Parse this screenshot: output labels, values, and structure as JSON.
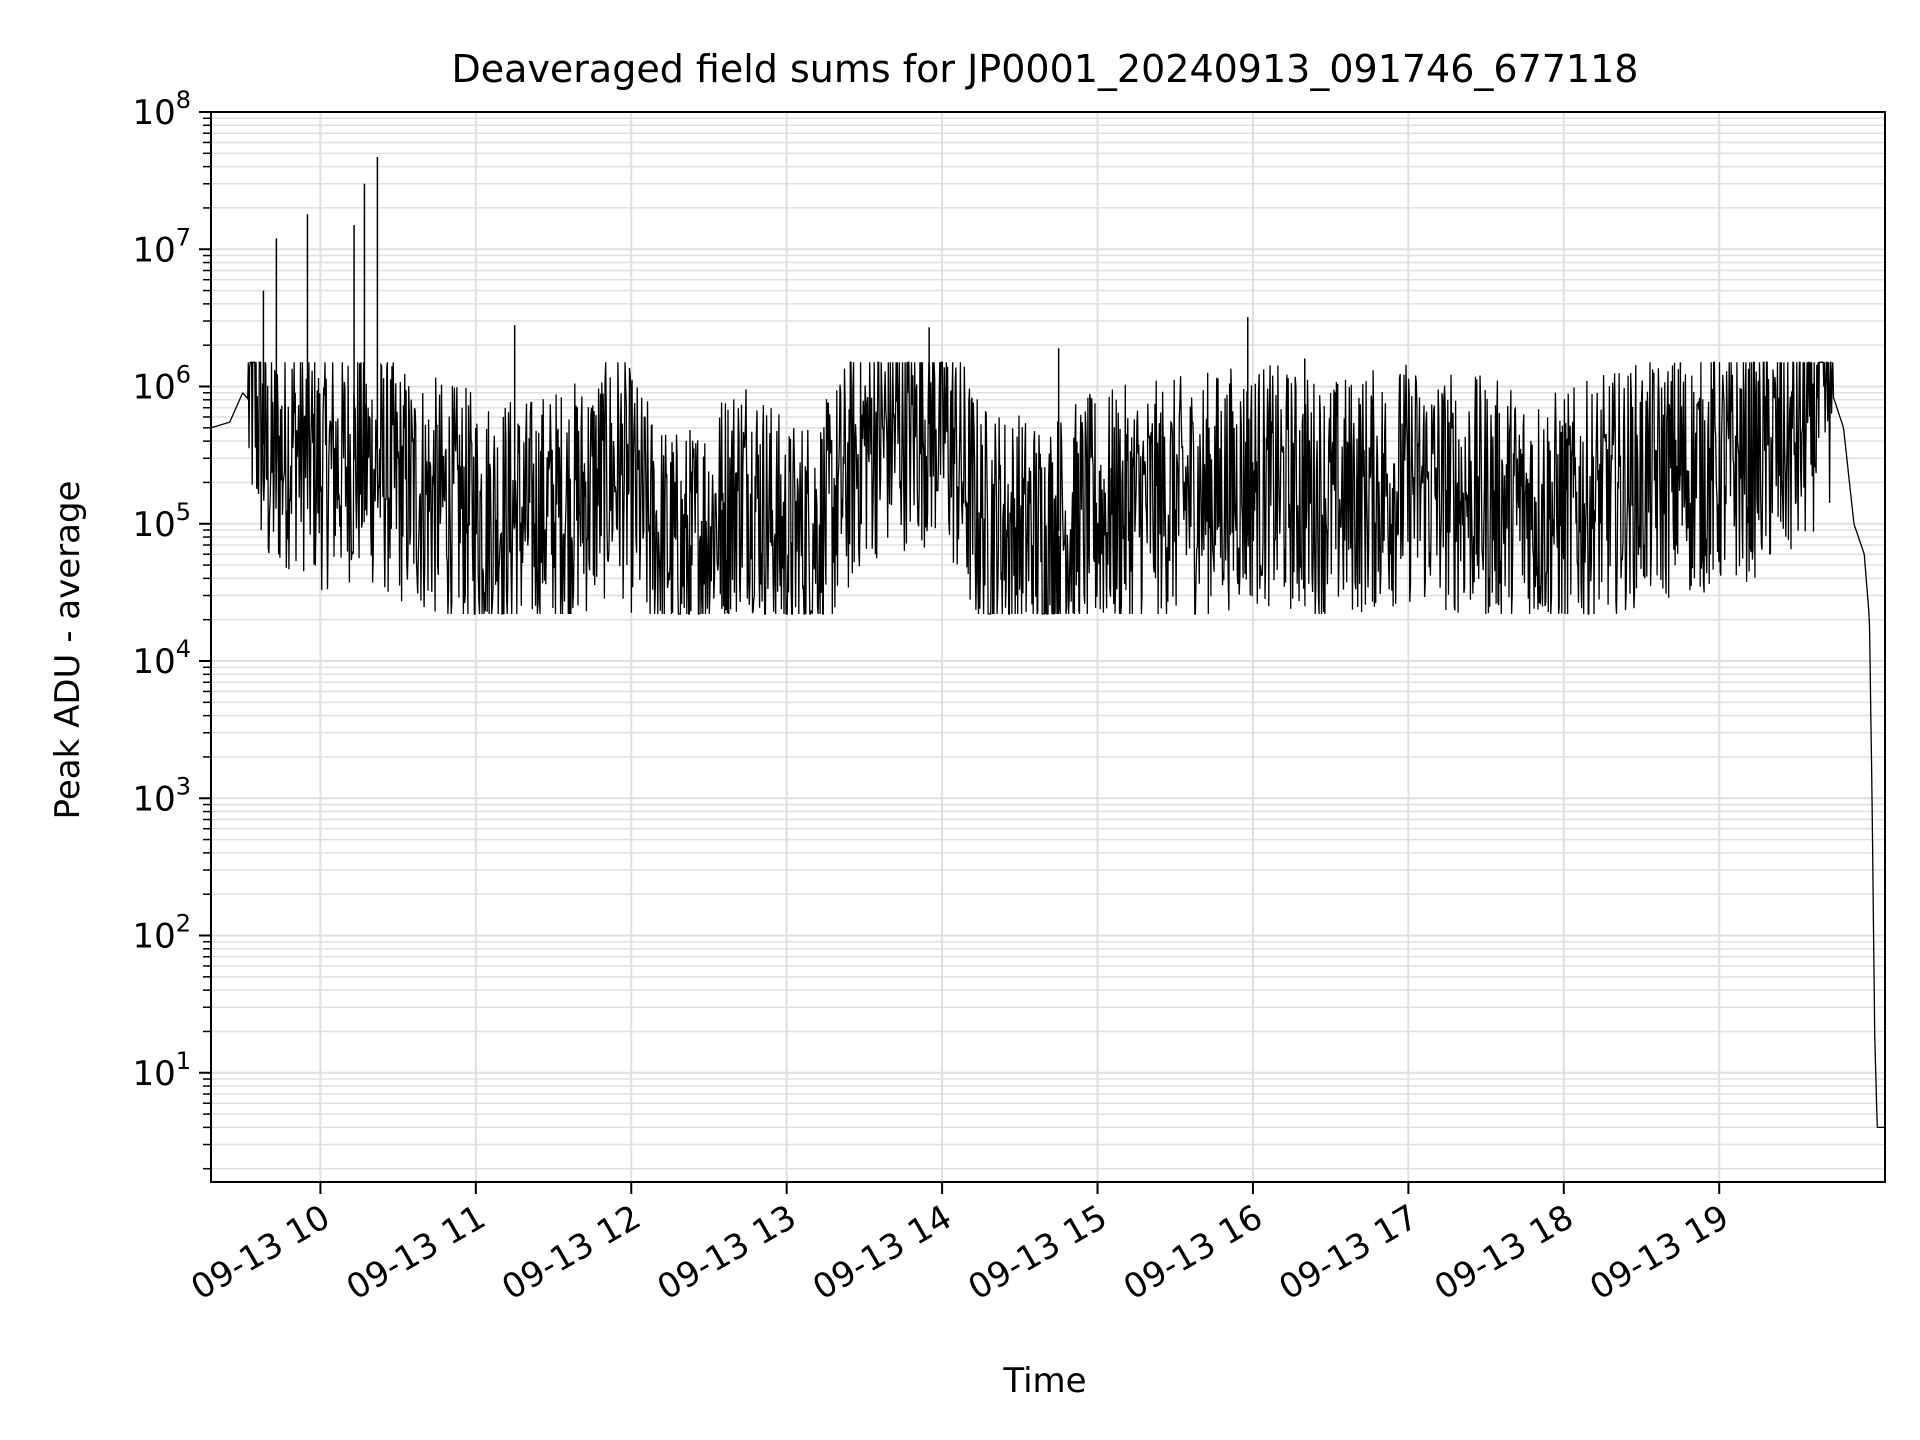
{
  "chart_data": {
    "type": "line",
    "title": "Deaveraged field sums for JP0001_20240913_091746_677118",
    "xlabel": "Time",
    "ylabel": "Peak ADU - average",
    "yscale": "log",
    "ylim": [
      1.6,
      100000000
    ],
    "xlim": [
      "2024-09-13 09:17:46",
      "2024-09-13 20:04:00"
    ],
    "grid": true,
    "x_ticks": [
      {
        "time": "2024-09-13 10:00",
        "label": "09-13 10"
      },
      {
        "time": "2024-09-13 11:00",
        "label": "09-13 11"
      },
      {
        "time": "2024-09-13 12:00",
        "label": "09-13 12"
      },
      {
        "time": "2024-09-13 13:00",
        "label": "09-13 13"
      },
      {
        "time": "2024-09-13 14:00",
        "label": "09-13 14"
      },
      {
        "time": "2024-09-13 15:00",
        "label": "09-13 15"
      },
      {
        "time": "2024-09-13 16:00",
        "label": "09-13 16"
      },
      {
        "time": "2024-09-13 17:00",
        "label": "09-13 17"
      },
      {
        "time": "2024-09-13 18:00",
        "label": "09-13 18"
      },
      {
        "time": "2024-09-13 19:00",
        "label": "09-13 19"
      }
    ],
    "y_ticks": [
      {
        "value": 10,
        "base": "10",
        "exp": "1"
      },
      {
        "value": 100,
        "base": "10",
        "exp": "2"
      },
      {
        "value": 1000,
        "base": "10",
        "exp": "3"
      },
      {
        "value": 10000,
        "base": "10",
        "exp": "4"
      },
      {
        "value": 100000,
        "base": "10",
        "exp": "5"
      },
      {
        "value": 1000000,
        "base": "10",
        "exp": "6"
      },
      {
        "value": 10000000,
        "base": "10",
        "exp": "7"
      },
      {
        "value": 100000000,
        "base": "10",
        "exp": "8"
      }
    ],
    "line_color": "#000000",
    "grid_color": "#e0e0e0",
    "series": [
      {
        "points": [
          [
            "2024-09-13 09:17:46",
            500000
          ],
          [
            "2024-09-13 09:25",
            550000
          ],
          [
            "2024-09-13 09:30",
            900000
          ],
          [
            "2024-09-13 09:35",
            700000
          ],
          [
            "2024-09-13 09:40",
            250000
          ],
          [
            "2024-09-13 09:50",
            400000
          ],
          [
            "2024-09-13 10:00",
            250000
          ],
          [
            "2024-09-13 10:15",
            300000
          ],
          [
            "2024-09-13 10:30",
            200000
          ],
          [
            "2024-09-13 10:45",
            150000
          ],
          [
            "2024-09-13 11:00",
            120000
          ],
          [
            "2024-09-13 11:20",
            110000
          ],
          [
            "2024-09-13 11:40",
            150000
          ],
          [
            "2024-09-13 11:55",
            250000
          ],
          [
            "2024-09-13 12:10",
            80000
          ],
          [
            "2024-09-13 12:20",
            60000
          ],
          [
            "2024-09-13 12:30",
            100000
          ],
          [
            "2024-09-13 12:45",
            200000
          ],
          [
            "2024-09-13 13:00",
            70000
          ],
          [
            "2024-09-13 13:15",
            100000
          ],
          [
            "2024-09-13 13:30",
            400000
          ],
          [
            "2024-09-13 13:45",
            500000
          ],
          [
            "2024-09-13 14:00",
            550000
          ],
          [
            "2024-09-13 14:15",
            100000
          ],
          [
            "2024-09-13 14:40",
            80000
          ],
          [
            "2024-09-13 15:00",
            120000
          ],
          [
            "2024-09-13 15:30",
            150000
          ],
          [
            "2024-09-13 16:00",
            200000
          ],
          [
            "2024-09-13 16:30",
            150000
          ],
          [
            "2024-09-13 17:00",
            200000
          ],
          [
            "2024-09-13 17:30",
            150000
          ],
          [
            "2024-09-13 18:00",
            120000
          ],
          [
            "2024-09-13 18:30",
            200000
          ],
          [
            "2024-09-13 19:00",
            250000
          ],
          [
            "2024-09-13 19:30",
            400000
          ],
          [
            "2024-09-13 19:42",
            1100000
          ],
          [
            "2024-09-13 19:48",
            500000
          ],
          [
            "2024-09-13 19:52",
            100000
          ],
          [
            "2024-09-13 19:56",
            60000
          ],
          [
            "2024-09-13 19:58",
            20000
          ],
          [
            "2024-09-13 19:59",
            1000
          ],
          [
            "2024-09-13 20:00",
            20
          ],
          [
            "2024-09-13 20:01",
            4
          ],
          [
            "2024-09-13 20:04",
            4
          ]
        ],
        "spikes": [
          [
            "2024-09-13 09:38",
            5000000
          ],
          [
            "2024-09-13 09:43",
            12000000
          ],
          [
            "2024-09-13 09:55",
            18000000
          ],
          [
            "2024-09-13 10:13",
            15000000
          ],
          [
            "2024-09-13 10:17",
            30000000
          ],
          [
            "2024-09-13 10:22",
            47000000
          ],
          [
            "2024-09-13 11:15",
            2800000
          ],
          [
            "2024-09-13 13:55",
            2700000
          ],
          [
            "2024-09-13 14:45",
            1900000
          ],
          [
            "2024-09-13 15:58",
            3200000
          ],
          [
            "2024-09-13 16:20",
            1600000
          ],
          [
            "2024-09-13 18:45",
            1500000
          ],
          [
            "2024-09-13 12:23",
            23000
          ],
          [
            "2024-09-13 12:35",
            24000
          ],
          [
            "2024-09-13 13:02",
            27000
          ]
        ]
      }
    ]
  }
}
